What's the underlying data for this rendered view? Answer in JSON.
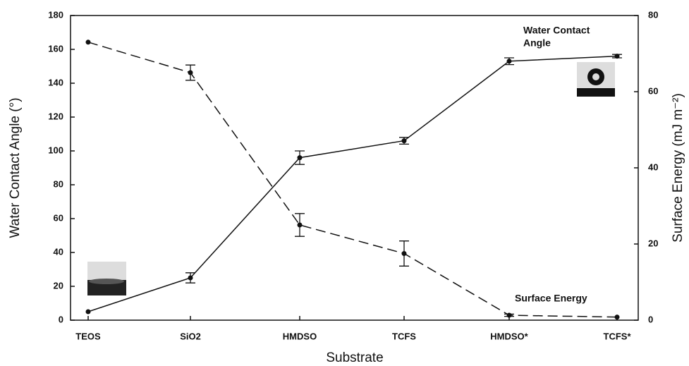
{
  "chart_data": {
    "type": "line",
    "x_label": "Substrate",
    "y_label": "Water Contact Angle (°)",
    "y2_label": "Surface Energy (mJ m⁻²)",
    "categories": [
      "TEOS",
      "SiO2",
      "HMDSO",
      "TCFS",
      "HMDSO*",
      "TCFS*"
    ],
    "series": [
      {
        "name": "Water Contact Angle",
        "color": "#111111",
        "dash": false,
        "values": [
          5,
          25,
          96,
          106,
          153,
          156
        ],
        "errors": [
          null,
          3,
          4,
          2,
          2,
          1
        ]
      },
      {
        "name": "Surface Energy",
        "color": "#111111",
        "dash": true,
        "axis": "y2",
        "values": [
          73,
          65,
          25,
          17.5,
          1.3,
          0.8
        ],
        "errors": [
          null,
          2,
          3,
          3.3,
          0.3,
          null
        ]
      }
    ],
    "ylim": [
      0,
      180
    ],
    "yticks": [
      0,
      20,
      40,
      60,
      80,
      100,
      120,
      140,
      160,
      180
    ],
    "y2lim": [
      0,
      80
    ],
    "y2ticks": [
      0,
      20,
      40,
      60,
      80
    ],
    "annotations": [
      "Water Contact",
      "Angle",
      "Surface Energy"
    ]
  }
}
